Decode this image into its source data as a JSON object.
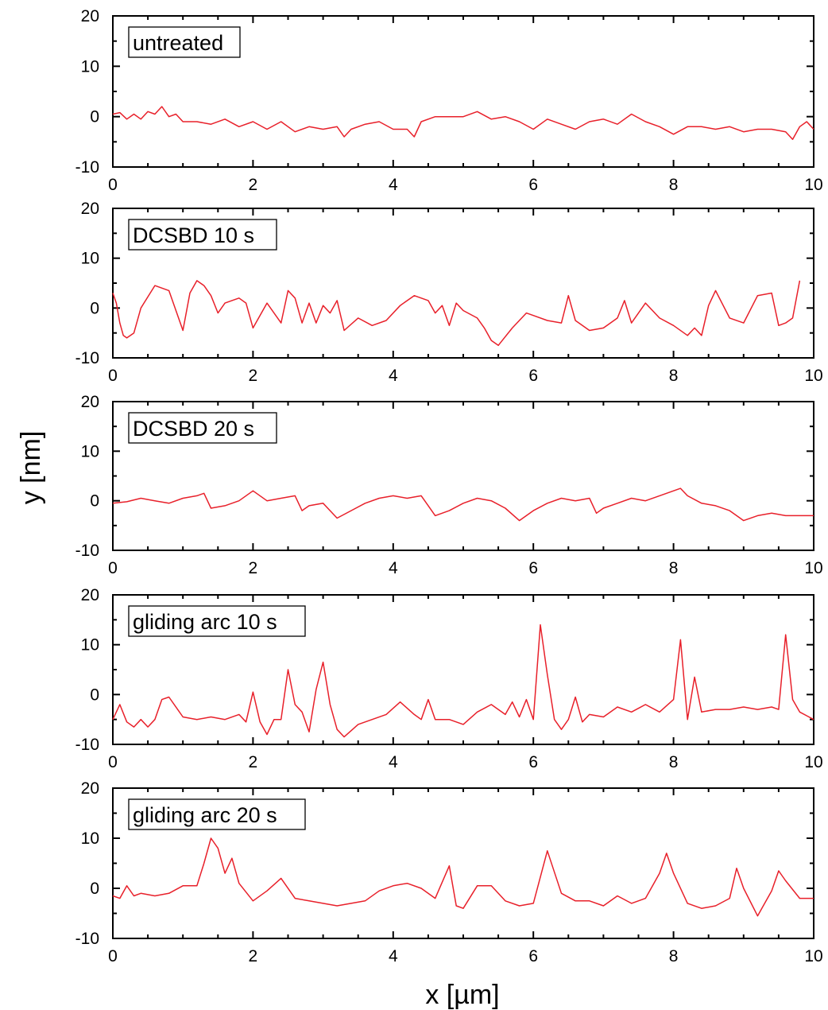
{
  "chart_data": {
    "type": "line",
    "layout": "stacked-panels",
    "xlabel": "x [µm]",
    "ylabel": "y [nm]",
    "xlim": [
      0,
      10
    ],
    "ylim": [
      -10,
      20
    ],
    "xticks": [
      0,
      2,
      4,
      6,
      8,
      10
    ],
    "yticks": [
      -10,
      0,
      10,
      20
    ],
    "series_color": "#e8202a",
    "panels": [
      {
        "name": "untreated",
        "x": [
          0,
          0.1,
          0.2,
          0.3,
          0.4,
          0.5,
          0.6,
          0.7,
          0.8,
          0.9,
          1.0,
          1.2,
          1.4,
          1.6,
          1.8,
          2.0,
          2.2,
          2.4,
          2.6,
          2.8,
          3.0,
          3.2,
          3.3,
          3.4,
          3.6,
          3.8,
          4.0,
          4.2,
          4.3,
          4.4,
          4.6,
          4.8,
          5.0,
          5.2,
          5.4,
          5.6,
          5.8,
          6.0,
          6.2,
          6.4,
          6.6,
          6.8,
          7.0,
          7.2,
          7.4,
          7.6,
          7.8,
          8.0,
          8.2,
          8.4,
          8.6,
          8.8,
          9.0,
          9.2,
          9.4,
          9.6,
          9.7,
          9.8,
          9.9,
          10.0
        ],
        "y": [
          0.5,
          0.8,
          -0.5,
          0.5,
          -0.5,
          1.0,
          0.5,
          2.0,
          0,
          0.5,
          -1.0,
          -1.0,
          -1.5,
          -0.5,
          -2.0,
          -1.0,
          -2.5,
          -1.0,
          -3.0,
          -2.0,
          -2.5,
          -2.0,
          -4.0,
          -2.5,
          -1.5,
          -1.0,
          -2.5,
          -2.5,
          -4.0,
          -1.0,
          0,
          0,
          0,
          1.0,
          -0.5,
          0,
          -1.0,
          -2.5,
          -0.5,
          -1.5,
          -2.5,
          -1.0,
          -0.5,
          -1.5,
          0.5,
          -1.0,
          -2.0,
          -3.5,
          -2.0,
          -2.0,
          -2.5,
          -2.0,
          -3.0,
          -2.5,
          -2.5,
          -3.0,
          -4.5,
          -2.0,
          -1.0,
          -2.5
        ]
      },
      {
        "name": "DCSBD 10 s",
        "x": [
          0,
          0.05,
          0.1,
          0.15,
          0.2,
          0.3,
          0.4,
          0.6,
          0.8,
          1.0,
          1.1,
          1.2,
          1.3,
          1.4,
          1.5,
          1.6,
          1.7,
          1.8,
          1.9,
          2.0,
          2.2,
          2.4,
          2.5,
          2.6,
          2.7,
          2.8,
          2.9,
          3.0,
          3.1,
          3.2,
          3.3,
          3.5,
          3.7,
          3.9,
          4.1,
          4.3,
          4.5,
          4.6,
          4.7,
          4.8,
          4.9,
          5.0,
          5.2,
          5.3,
          5.4,
          5.5,
          5.7,
          5.9,
          6.0,
          6.2,
          6.4,
          6.5,
          6.6,
          6.8,
          7.0,
          7.2,
          7.3,
          7.4,
          7.6,
          7.8,
          8.0,
          8.2,
          8.3,
          8.4,
          8.5,
          8.6,
          8.8,
          9.0,
          9.2,
          9.4,
          9.5,
          9.6,
          9.7,
          9.8
        ],
        "y": [
          3.0,
          1.0,
          -3.0,
          -5.5,
          -6.0,
          -5.0,
          0.0,
          4.5,
          3.5,
          -4.5,
          3.0,
          5.5,
          4.5,
          2.5,
          -1.0,
          1.0,
          1.5,
          2.0,
          1.0,
          -4.0,
          1.0,
          -3.0,
          3.5,
          2.0,
          -3.0,
          1.0,
          -3.0,
          0.5,
          -1.0,
          1.5,
          -4.5,
          -2.0,
          -3.5,
          -2.5,
          0.5,
          2.5,
          1.5,
          -1.0,
          0.5,
          -3.5,
          1.0,
          -0.5,
          -2.0,
          -4.0,
          -6.5,
          -7.5,
          -4.0,
          -1.0,
          -1.5,
          -2.5,
          -3.0,
          2.5,
          -2.5,
          -4.5,
          -4.0,
          -2.0,
          1.5,
          -3.0,
          1.0,
          -2.0,
          -3.5,
          -5.5,
          -4.0,
          -5.5,
          0.5,
          3.5,
          -2.0,
          -3.0,
          2.5,
          3.0,
          -3.5,
          -3.0,
          -2.0,
          5.5
        ]
      },
      {
        "name": "DCSBD 20 s",
        "x": [
          0,
          0.2,
          0.4,
          0.6,
          0.8,
          1.0,
          1.2,
          1.3,
          1.4,
          1.6,
          1.8,
          2.0,
          2.2,
          2.4,
          2.6,
          2.7,
          2.8,
          3.0,
          3.2,
          3.4,
          3.6,
          3.8,
          4.0,
          4.2,
          4.4,
          4.6,
          4.8,
          5.0,
          5.2,
          5.4,
          5.6,
          5.8,
          6.0,
          6.2,
          6.4,
          6.6,
          6.8,
          6.9,
          7.0,
          7.2,
          7.4,
          7.6,
          7.8,
          8.0,
          8.1,
          8.2,
          8.4,
          8.6,
          8.8,
          9.0,
          9.2,
          9.4,
          9.6,
          9.8,
          10.0
        ],
        "y": [
          -0.5,
          -0.2,
          0.5,
          0,
          -0.5,
          0.5,
          1.0,
          1.5,
          -1.5,
          -1.0,
          0,
          2.0,
          0,
          0.5,
          1.0,
          -2.0,
          -1.0,
          -0.5,
          -3.5,
          -2.0,
          -0.5,
          0.5,
          1.0,
          0.5,
          1.0,
          -3.0,
          -2.0,
          -0.5,
          0.5,
          0,
          -1.5,
          -4.0,
          -2.0,
          -0.5,
          0.5,
          0,
          0.5,
          -2.5,
          -1.5,
          -0.5,
          0.5,
          0,
          1.0,
          2.0,
          2.5,
          1.0,
          -0.5,
          -1.0,
          -2.0,
          -4.0,
          -3.0,
          -2.5,
          -3.0,
          -3.0,
          -3.0
        ]
      },
      {
        "name": "gliding arc 10 s",
        "x": [
          0,
          0.1,
          0.2,
          0.3,
          0.4,
          0.5,
          0.6,
          0.7,
          0.8,
          1.0,
          1.2,
          1.4,
          1.6,
          1.8,
          1.9,
          2.0,
          2.1,
          2.2,
          2.3,
          2.4,
          2.5,
          2.6,
          2.7,
          2.8,
          2.9,
          3.0,
          3.1,
          3.2,
          3.3,
          3.5,
          3.7,
          3.9,
          4.1,
          4.3,
          4.4,
          4.5,
          4.6,
          4.8,
          5.0,
          5.2,
          5.4,
          5.6,
          5.7,
          5.8,
          5.9,
          6.0,
          6.1,
          6.2,
          6.3,
          6.4,
          6.5,
          6.6,
          6.7,
          6.8,
          7.0,
          7.2,
          7.4,
          7.6,
          7.8,
          8.0,
          8.1,
          8.2,
          8.3,
          8.4,
          8.6,
          8.8,
          9.0,
          9.2,
          9.4,
          9.5,
          9.6,
          9.7,
          9.8,
          10.0
        ],
        "y": [
          -5.0,
          -2.0,
          -5.5,
          -6.5,
          -5.0,
          -6.5,
          -5.0,
          -1.0,
          -0.5,
          -4.5,
          -5.0,
          -4.5,
          -5.0,
          -4.0,
          -5.5,
          0.5,
          -5.5,
          -8.0,
          -5.0,
          -5.0,
          5.0,
          -2.0,
          -3.5,
          -7.5,
          1.0,
          6.5,
          -2.0,
          -7.0,
          -8.5,
          -6.0,
          -5.0,
          -4.0,
          -1.5,
          -4.0,
          -5.0,
          -1.0,
          -5.0,
          -5.0,
          -6.0,
          -3.5,
          -2.0,
          -4.0,
          -1.5,
          -4.5,
          -1.0,
          -5.0,
          14.0,
          4.0,
          -5.0,
          -7.0,
          -5.0,
          -0.5,
          -5.5,
          -4.0,
          -4.5,
          -2.5,
          -3.5,
          -2.0,
          -3.5,
          -1.0,
          11.0,
          -5.0,
          3.5,
          -3.5,
          -3.0,
          -3.0,
          -2.5,
          -3.0,
          -2.5,
          -3.0,
          12.0,
          -1.0,
          -3.5,
          -5.0
        ]
      },
      {
        "name": "gliding arc 20 s",
        "x": [
          0,
          0.1,
          0.2,
          0.3,
          0.4,
          0.6,
          0.8,
          1.0,
          1.2,
          1.3,
          1.4,
          1.5,
          1.6,
          1.7,
          1.8,
          2.0,
          2.2,
          2.4,
          2.6,
          2.8,
          3.0,
          3.2,
          3.4,
          3.6,
          3.8,
          4.0,
          4.2,
          4.4,
          4.6,
          4.8,
          4.9,
          5.0,
          5.2,
          5.4,
          5.6,
          5.8,
          6.0,
          6.2,
          6.4,
          6.6,
          6.8,
          7.0,
          7.2,
          7.4,
          7.6,
          7.8,
          7.9,
          8.0,
          8.2,
          8.4,
          8.6,
          8.8,
          8.9,
          9.0,
          9.2,
          9.4,
          9.5,
          9.6,
          9.8,
          10.0
        ],
        "y": [
          -1.5,
          -2.0,
          0.5,
          -1.5,
          -1.0,
          -1.5,
          -1.0,
          0.5,
          0.5,
          5.0,
          10.0,
          8.0,
          3.0,
          6.0,
          1.0,
          -2.5,
          -0.5,
          2.0,
          -2.0,
          -2.5,
          -3.0,
          -3.5,
          -3.0,
          -2.5,
          -0.5,
          0.5,
          1.0,
          0,
          -2.0,
          4.5,
          -3.5,
          -4.0,
          0.5,
          0.5,
          -2.5,
          -3.5,
          -3.0,
          7.5,
          -1.0,
          -2.5,
          -2.5,
          -3.5,
          -1.5,
          -3.0,
          -2.0,
          3.0,
          7.0,
          3.0,
          -3.0,
          -4.0,
          -3.5,
          -2.0,
          4.0,
          0,
          -5.5,
          -0.5,
          3.5,
          1.5,
          -2.0,
          -2.0
        ]
      }
    ]
  }
}
